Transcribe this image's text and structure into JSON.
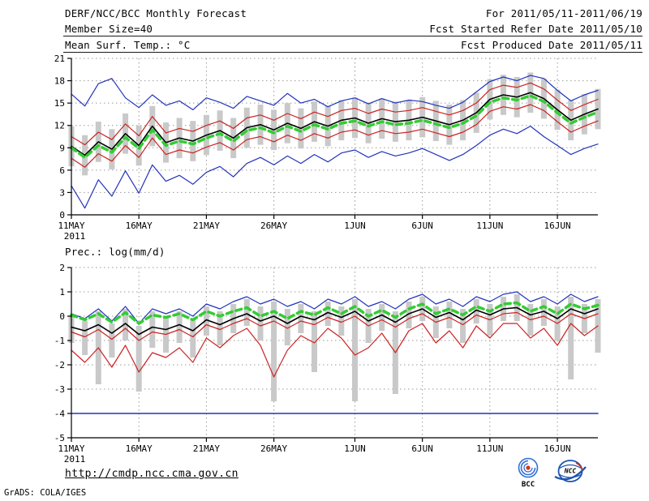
{
  "header": {
    "title": "DERF/NCC/BCC Monthly Forecast",
    "for_range": "For 2011/05/11-2011/06/19",
    "member_size": "Member Size=40",
    "fcst_started": "Fcst Started Refer Date 2011/05/10",
    "temp_label": "Mean Surf. Temp.: °C",
    "fcst_produced": "Fcst Produced Date 2011/05/11"
  },
  "footer": {
    "url": "http://cmdp.ncc.cma.gov.cn",
    "grads_credit": "GrADS: COLA/IGES",
    "logo_bcc": "BCC",
    "logo_ncc": "NCC"
  },
  "colors": {
    "envelope": "#2233bb",
    "spread": "#cc2222",
    "mean": "#000000",
    "climatology": "#33cc33",
    "bars": "#c9c9c9"
  },
  "chart_data": [
    {
      "type": "line",
      "title": "Mean Surf. Temp.: °C",
      "xlabel": "",
      "ylabel": "°C",
      "ylim": [
        0,
        21
      ],
      "yticks": [
        0,
        3,
        6,
        9,
        12,
        15,
        18,
        21
      ],
      "n_days": 40,
      "x_year": "2011",
      "grid": true,
      "xticks": [
        {
          "day": 0,
          "label": "11MAY"
        },
        {
          "day": 5,
          "label": "16MAY"
        },
        {
          "day": 10,
          "label": "21MAY"
        },
        {
          "day": 15,
          "label": "26MAY"
        },
        {
          "day": 21,
          "label": "1JUN"
        },
        {
          "day": 26,
          "label": "6JUN"
        },
        {
          "day": 31,
          "label": "11JUN"
        },
        {
          "day": 36,
          "label": "16JUN"
        }
      ],
      "bars": {
        "color": "#c9c9c9",
        "low": [
          6.5,
          5.3,
          7.1,
          6.1,
          8.2,
          6.6,
          9.2,
          7.0,
          7.6,
          7.2,
          8.0,
          8.6,
          7.6,
          9.0,
          9.4,
          8.7,
          9.6,
          8.9,
          9.8,
          9.2,
          10.0,
          10.3,
          9.6,
          10.2,
          9.8,
          10.0,
          10.4,
          9.9,
          9.4,
          10.0,
          11.0,
          12.8,
          13.4,
          13.1,
          13.7,
          12.9,
          11.4,
          10.0,
          10.8,
          11.5
        ],
        "high": [
          11.9,
          10.7,
          12.5,
          11.5,
          13.6,
          12.0,
          14.6,
          12.4,
          13.0,
          12.6,
          13.4,
          14.0,
          13.0,
          14.4,
          14.8,
          14.1,
          15.0,
          14.3,
          15.2,
          14.6,
          15.4,
          15.7,
          15.0,
          15.6,
          15.2,
          15.4,
          15.8,
          15.3,
          14.8,
          15.4,
          16.4,
          18.2,
          18.8,
          18.5,
          19.1,
          18.3,
          16.8,
          15.4,
          16.2,
          16.9
        ]
      },
      "series": [
        {
          "name": "ensemble-max",
          "color": "#2233bb",
          "width": 1.2,
          "dash": "",
          "values": [
            16.2,
            14.6,
            17.6,
            18.3,
            15.7,
            14.4,
            16.1,
            14.7,
            15.3,
            14.1,
            15.7,
            15.1,
            14.3,
            15.9,
            15.3,
            14.7,
            16.3,
            15.0,
            15.5,
            14.5,
            15.3,
            15.7,
            14.9,
            15.6,
            15.0,
            15.4,
            15.2,
            14.7,
            14.3,
            15.1,
            16.5,
            17.9,
            18.5,
            18.0,
            18.7,
            18.3,
            16.7,
            15.3,
            16.1,
            16.7
          ]
        },
        {
          "name": "ensemble-min",
          "color": "#2233bb",
          "width": 1.2,
          "dash": "",
          "values": [
            3.9,
            0.9,
            4.7,
            2.5,
            5.9,
            2.9,
            6.7,
            4.5,
            5.3,
            4.1,
            5.7,
            6.5,
            5.1,
            6.9,
            7.7,
            6.7,
            7.9,
            6.9,
            8.1,
            7.1,
            8.3,
            8.7,
            7.7,
            8.5,
            7.9,
            8.3,
            8.9,
            8.1,
            7.3,
            8.1,
            9.3,
            10.7,
            11.5,
            10.9,
            11.9,
            10.5,
            9.3,
            8.1,
            8.9,
            9.5
          ]
        },
        {
          "name": "upper-spread",
          "color": "#cc2222",
          "width": 1.2,
          "dash": "",
          "values": [
            10.5,
            9.4,
            11.1,
            10.1,
            12.2,
            10.6,
            13.2,
            11.0,
            11.6,
            11.2,
            12.0,
            12.6,
            11.6,
            13.0,
            13.4,
            12.7,
            13.6,
            12.9,
            13.8,
            13.2,
            14.0,
            14.3,
            13.6,
            14.2,
            13.8,
            14.0,
            14.4,
            13.9,
            13.4,
            14.0,
            15.0,
            16.8,
            17.4,
            17.1,
            17.7,
            16.9,
            15.4,
            14.0,
            14.8,
            15.5
          ]
        },
        {
          "name": "lower-spread",
          "color": "#cc2222",
          "width": 1.2,
          "dash": "",
          "values": [
            7.6,
            6.4,
            8.2,
            7.2,
            9.3,
            7.7,
            10.3,
            8.1,
            8.7,
            8.3,
            9.1,
            9.7,
            8.7,
            10.1,
            10.5,
            9.8,
            10.7,
            10.0,
            10.9,
            10.3,
            11.1,
            11.4,
            10.7,
            11.3,
            10.9,
            11.1,
            11.5,
            11.0,
            10.5,
            11.1,
            12.1,
            13.9,
            14.5,
            14.2,
            14.8,
            14.0,
            12.5,
            11.1,
            11.9,
            12.6
          ]
        },
        {
          "name": "ensemble-mean",
          "color": "#000000",
          "width": 1.6,
          "dash": "",
          "values": [
            9.2,
            8.0,
            9.8,
            8.8,
            10.9,
            9.3,
            11.9,
            9.7,
            10.3,
            9.9,
            10.7,
            11.3,
            10.3,
            11.7,
            12.1,
            11.4,
            12.3,
            11.6,
            12.5,
            11.9,
            12.7,
            13.0,
            12.3,
            12.9,
            12.5,
            12.7,
            13.1,
            12.6,
            12.1,
            12.7,
            13.7,
            15.5,
            16.1,
            15.8,
            16.4,
            15.6,
            14.1,
            12.7,
            13.5,
            14.2
          ]
        },
        {
          "name": "climatology",
          "color": "#33cc33",
          "width": 3.5,
          "dash": "7,5",
          "values": [
            9.0,
            7.7,
            9.3,
            8.4,
            10.4,
            8.9,
            11.4,
            9.3,
            9.9,
            9.5,
            10.3,
            10.9,
            9.9,
            11.3,
            11.7,
            11.0,
            11.9,
            11.2,
            12.1,
            11.5,
            12.3,
            12.6,
            11.9,
            12.5,
            12.1,
            12.3,
            12.7,
            12.2,
            11.7,
            12.3,
            13.3,
            15.1,
            15.7,
            15.4,
            16.0,
            15.2,
            13.7,
            12.3,
            13.1,
            13.8
          ]
        }
      ]
    },
    {
      "type": "line",
      "title": "Prec.: log(mm/d)",
      "xlabel": "",
      "ylabel": "log(mm/d)",
      "ylim": [
        -5,
        2
      ],
      "yticks": [
        -5,
        -4,
        -3,
        -2,
        -1,
        0,
        1,
        2
      ],
      "n_days": 40,
      "x_year": "2011",
      "grid": true,
      "xticks": [
        {
          "day": 0,
          "label": "11MAY"
        },
        {
          "day": 5,
          "label": "16MAY"
        },
        {
          "day": 10,
          "label": "21MAY"
        },
        {
          "day": 15,
          "label": "26MAY"
        },
        {
          "day": 21,
          "label": "1JUN"
        },
        {
          "day": 26,
          "label": "6JUN"
        },
        {
          "day": 31,
          "label": "11JUN"
        },
        {
          "day": 36,
          "label": "16JUN"
        }
      ],
      "bars": {
        "color": "#c9c9c9",
        "low": [
          -1.1,
          -1.6,
          -2.8,
          -1.7,
          -1.0,
          -3.1,
          -1.3,
          -1.5,
          -1.1,
          -1.7,
          -0.8,
          -1.2,
          -0.7,
          -0.4,
          -1.0,
          -3.5,
          -1.2,
          -0.7,
          -2.3,
          -0.4,
          -0.8,
          -3.5,
          -1.1,
          -0.6,
          -3.2,
          -0.5,
          -0.2,
          -0.9,
          -0.5,
          -1.1,
          -0.3,
          -0.8,
          -0.2,
          -0.2,
          -0.8,
          -0.4,
          -1.0,
          -2.6,
          -0.7,
          -1.5
        ],
        "high": [
          0.0,
          -0.2,
          0.2,
          -0.3,
          0.3,
          -0.4,
          0.2,
          0.0,
          0.2,
          -0.1,
          0.4,
          0.2,
          0.5,
          0.7,
          0.4,
          0.6,
          0.3,
          0.5,
          0.2,
          0.6,
          0.4,
          0.7,
          0.3,
          0.5,
          0.2,
          0.6,
          0.8,
          0.4,
          0.6,
          0.3,
          0.7,
          0.5,
          0.8,
          0.9,
          0.5,
          0.7,
          0.4,
          0.8,
          0.5,
          0.7
        ]
      },
      "series": [
        {
          "name": "ensemble-max",
          "color": "#2233bb",
          "width": 1.2,
          "dash": "",
          "values": [
            0.1,
            -0.1,
            0.3,
            -0.2,
            0.4,
            -0.3,
            0.3,
            0.1,
            0.3,
            0.0,
            0.5,
            0.3,
            0.6,
            0.8,
            0.5,
            0.7,
            0.4,
            0.6,
            0.3,
            0.7,
            0.5,
            0.8,
            0.4,
            0.6,
            0.3,
            0.7,
            0.9,
            0.5,
            0.7,
            0.4,
            0.8,
            0.6,
            0.9,
            1.0,
            0.6,
            0.8,
            0.5,
            0.9,
            0.6,
            0.8
          ]
        },
        {
          "name": "ensemble-min",
          "color": "#2233bb",
          "width": 1.5,
          "dash": "",
          "values": [
            -4,
            -4,
            -4,
            -4,
            -4,
            -4,
            -4,
            -4,
            -4,
            -4,
            -4,
            -4,
            -4,
            -4,
            -4,
            -4,
            -4,
            -4,
            -4,
            -4,
            -4,
            -4,
            -4,
            -4,
            -4,
            -4,
            -4,
            -4,
            -4,
            -4,
            -4,
            -4,
            -4,
            -4,
            -4,
            -4,
            -4,
            -4,
            -4,
            -4
          ]
        },
        {
          "name": "upper-spread",
          "color": "#cc2222",
          "width": 1.2,
          "dash": "",
          "values": [
            -0.65,
            -0.85,
            -0.55,
            -0.95,
            -0.5,
            -1.0,
            -0.65,
            -0.75,
            -0.55,
            -0.85,
            -0.35,
            -0.55,
            -0.3,
            -0.1,
            -0.4,
            -0.2,
            -0.5,
            -0.2,
            -0.35,
            -0.05,
            -0.25,
            0.0,
            -0.4,
            -0.15,
            -0.45,
            -0.1,
            0.1,
            -0.25,
            -0.05,
            -0.35,
            0.05,
            -0.15,
            0.1,
            0.15,
            -0.15,
            0.0,
            -0.3,
            0.1,
            -0.1,
            0.1
          ]
        },
        {
          "name": "lower-spread",
          "color": "#cc2222",
          "width": 1.2,
          "dash": "",
          "values": [
            -1.4,
            -1.9,
            -1.3,
            -2.1,
            -1.2,
            -2.3,
            -1.5,
            -1.7,
            -1.3,
            -1.9,
            -0.9,
            -1.3,
            -0.8,
            -0.5,
            -1.2,
            -2.5,
            -1.4,
            -0.8,
            -1.1,
            -0.5,
            -0.9,
            -1.6,
            -1.3,
            -0.7,
            -1.5,
            -0.6,
            -0.3,
            -1.1,
            -0.6,
            -1.3,
            -0.4,
            -0.9,
            -0.3,
            -0.3,
            -0.9,
            -0.5,
            -1.2,
            -0.3,
            -0.8,
            -0.4
          ]
        },
        {
          "name": "ensemble-mean",
          "color": "#000000",
          "width": 1.6,
          "dash": "",
          "values": [
            -0.45,
            -0.6,
            -0.35,
            -0.7,
            -0.3,
            -0.75,
            -0.45,
            -0.55,
            -0.35,
            -0.6,
            -0.15,
            -0.35,
            -0.1,
            0.1,
            -0.2,
            0.0,
            -0.3,
            0.0,
            -0.15,
            0.15,
            -0.05,
            0.2,
            -0.2,
            0.05,
            -0.25,
            0.1,
            0.3,
            -0.05,
            0.15,
            -0.15,
            0.25,
            0.05,
            0.3,
            0.35,
            0.05,
            0.2,
            -0.1,
            0.3,
            0.1,
            0.3
          ]
        },
        {
          "name": "climatology",
          "color": "#33cc33",
          "width": 3.5,
          "dash": "7,5",
          "values": [
            0.05,
            -0.15,
            0.1,
            -0.25,
            0.15,
            -0.3,
            0.05,
            -0.05,
            0.1,
            -0.15,
            0.2,
            0.0,
            0.2,
            0.35,
            0.0,
            0.2,
            -0.1,
            0.2,
            0.05,
            0.35,
            0.1,
            0.4,
            0.0,
            0.25,
            -0.05,
            0.3,
            0.5,
            0.1,
            0.3,
            0.05,
            0.4,
            0.2,
            0.5,
            0.55,
            0.2,
            0.4,
            0.1,
            0.5,
            0.3,
            0.45
          ]
        }
      ]
    }
  ]
}
